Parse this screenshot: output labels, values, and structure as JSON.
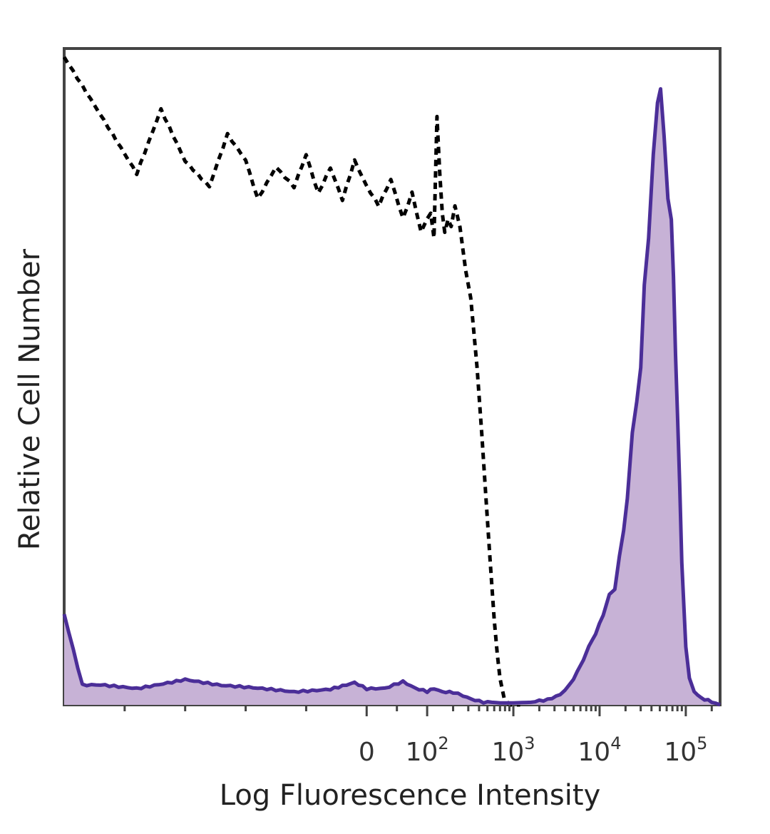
{
  "chart_data": {
    "type": "area",
    "xlabel": "Log Fluorescence Intensity",
    "ylabel": "Relative Cell Number",
    "x_scale": "biexponential",
    "x_ticks": [
      {
        "value": 0,
        "base": "0",
        "exp": ""
      },
      {
        "value": 100,
        "base": "10",
        "exp": "2"
      },
      {
        "value": 1000,
        "base": "10",
        "exp": "3"
      },
      {
        "value": 10000,
        "base": "10",
        "exp": "4"
      },
      {
        "value": 100000,
        "base": "10",
        "exp": "5"
      }
    ],
    "xlim": [
      -500,
      250000
    ],
    "ylim": [
      0,
      100
    ],
    "grid": false,
    "legend": "none",
    "colors": {
      "stained_line": "#4b2e98",
      "stained_fill": "#c7b2d6",
      "control_line": "#000000",
      "frame": "#444444"
    },
    "series": [
      {
        "style": "dashed-unfilled",
        "points": [
          [
            -500,
            100
          ],
          [
            -420,
            88
          ],
          [
            -380,
            82
          ],
          [
            -340,
            92
          ],
          [
            -300,
            84
          ],
          [
            -260,
            80
          ],
          [
            -230,
            88
          ],
          [
            -200,
            84
          ],
          [
            -180,
            78
          ],
          [
            -150,
            83
          ],
          [
            -120,
            80
          ],
          [
            -100,
            85
          ],
          [
            -80,
            79
          ],
          [
            -60,
            83
          ],
          [
            -40,
            78
          ],
          [
            -20,
            84
          ],
          [
            0,
            80
          ],
          [
            20,
            77
          ],
          [
            40,
            81
          ],
          [
            60,
            75
          ],
          [
            75,
            79
          ],
          [
            90,
            73
          ],
          [
            100,
            75
          ],
          [
            110,
            76
          ],
          [
            120,
            72
          ],
          [
            130,
            91
          ],
          [
            140,
            82
          ],
          [
            150,
            76
          ],
          [
            160,
            73
          ],
          [
            175,
            75
          ],
          [
            190,
            74
          ],
          [
            210,
            77
          ],
          [
            240,
            74
          ],
          [
            280,
            67
          ],
          [
            320,
            63
          ],
          [
            380,
            52
          ],
          [
            430,
            42
          ],
          [
            480,
            32
          ],
          [
            540,
            22
          ],
          [
            600,
            13
          ],
          [
            650,
            8
          ],
          [
            700,
            4
          ],
          [
            780,
            1
          ],
          [
            900,
            0
          ],
          [
            1200,
            0
          ]
        ]
      },
      {
        "style": "solid-filled",
        "points": [
          [
            -500,
            14
          ],
          [
            -470,
            3
          ],
          [
            -440,
            3
          ],
          [
            -380,
            2.5
          ],
          [
            -300,
            4
          ],
          [
            -240,
            3
          ],
          [
            -180,
            2.5
          ],
          [
            -120,
            2
          ],
          [
            -60,
            2.5
          ],
          [
            -20,
            3.5
          ],
          [
            0,
            2.5
          ],
          [
            30,
            2.5
          ],
          [
            60,
            3.5
          ],
          [
            80,
            2.5
          ],
          [
            100,
            2
          ],
          [
            120,
            2.5
          ],
          [
            150,
            2
          ],
          [
            200,
            2
          ],
          [
            260,
            1.5
          ],
          [
            320,
            1
          ],
          [
            450,
            0.5
          ],
          [
            700,
            0.3
          ],
          [
            1000,
            0.3
          ],
          [
            1600,
            0.4
          ],
          [
            2500,
            0.7
          ],
          [
            3500,
            1.5
          ],
          [
            4500,
            3
          ],
          [
            5500,
            5
          ],
          [
            6500,
            7
          ],
          [
            7500,
            9
          ],
          [
            9000,
            11
          ],
          [
            11000,
            14
          ],
          [
            13000,
            17
          ],
          [
            15000,
            18
          ],
          [
            17000,
            23
          ],
          [
            19000,
            27
          ],
          [
            21000,
            32
          ],
          [
            24000,
            42
          ],
          [
            27000,
            47
          ],
          [
            30000,
            52
          ],
          [
            33000,
            65
          ],
          [
            37000,
            72
          ],
          [
            42000,
            85
          ],
          [
            47000,
            93
          ],
          [
            51000,
            95
          ],
          [
            56000,
            88
          ],
          [
            62000,
            78
          ],
          [
            68000,
            75
          ],
          [
            72000,
            66
          ],
          [
            76000,
            54
          ],
          [
            80000,
            45
          ],
          [
            85000,
            34
          ],
          [
            90000,
            22
          ],
          [
            95000,
            15
          ],
          [
            100000,
            9
          ],
          [
            110000,
            4
          ],
          [
            125000,
            2
          ],
          [
            150000,
            1
          ],
          [
            200000,
            0.5
          ],
          [
            250000,
            0
          ]
        ]
      }
    ]
  }
}
